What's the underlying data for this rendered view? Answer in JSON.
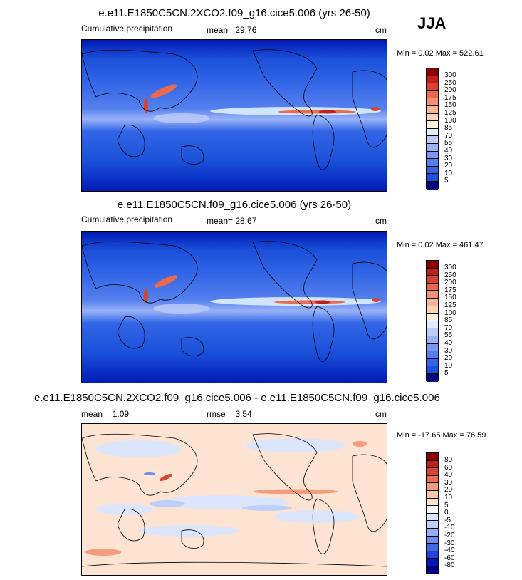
{
  "season": "JJA",
  "colors": {
    "precip_scale": [
      "#00007f",
      "#0019b3",
      "#0033cc",
      "#1a4fd9",
      "#3366e6",
      "#5580ee",
      "#7799f4",
      "#99b3f7",
      "#bbccfa",
      "#ddeefe",
      "#fff0dd",
      "#fdd4b8",
      "#fbb595",
      "#f59070",
      "#ea6a4c",
      "#d9432c",
      "#c0201a",
      "#8b0000"
    ],
    "diff_scale": [
      "#00007f",
      "#0019b3",
      "#1f44d6",
      "#4169e1",
      "#6b8ef0",
      "#93b0f6",
      "#bdd0fa",
      "#dbe6fd",
      "#ffffff",
      "#fde3d2",
      "#fbc5a8",
      "#f59d7a",
      "#ea7050",
      "#d8462e",
      "#bf2016",
      "#8b0000"
    ]
  },
  "panels": [
    {
      "title": "e.e11.E1850C5CN.2XCO2.f09_g16.cice5.006 (yrs 26-50)",
      "left_label": "Cumulative precipitation",
      "mean_label": "mean=  29.76",
      "units": "cm",
      "minmax": "Min =   0.02 Max = 522.61"
    },
    {
      "title": "e.e11.E1850C5CN.f09_g16.cice5.006 (yrs 26-50)",
      "left_label": "Cumulative precipitation",
      "mean_label": "mean=  28.67",
      "units": "cm",
      "minmax": "Min =   0.02 Max = 461.47"
    },
    {
      "title": "e.e11.E1850C5CN.2XCO2.f09_g16.cice5.006 - e.e11.E1850C5CN.f09_g16.cice5.006",
      "left_label": "mean =   1.09",
      "mean_label": "rmse =   3.54",
      "units": "cm",
      "minmax": "Min = -17.65 Max =  76.59"
    }
  ],
  "chart_data": [
    {
      "type": "heatmap",
      "title": "e.e11.E1850C5CN.2XCO2.f09_g16.cice5.006 (yrs 26-50)",
      "variable": "Cumulative precipitation",
      "units": "cm",
      "mean": 29.76,
      "min": 0.02,
      "max": 522.61,
      "colorbar_levels": [
        5,
        10,
        20,
        30,
        40,
        55,
        70,
        85,
        100,
        125,
        150,
        175,
        200,
        250,
        300
      ]
    },
    {
      "type": "heatmap",
      "title": "e.e11.E1850C5CN.f09_g16.cice5.006 (yrs 26-50)",
      "variable": "Cumulative precipitation",
      "units": "cm",
      "mean": 28.67,
      "min": 0.02,
      "max": 461.47,
      "colorbar_levels": [
        5,
        10,
        20,
        30,
        40,
        55,
        70,
        85,
        100,
        125,
        150,
        175,
        200,
        250,
        300
      ]
    },
    {
      "type": "heatmap",
      "title": "e.e11.E1850C5CN.2XCO2.f09_g16.cice5.006 - e.e11.E1850C5CN.f09_g16.cice5.006",
      "units": "cm",
      "mean": 1.09,
      "rmse": 3.54,
      "min": -17.65,
      "max": 76.59,
      "colorbar_levels": [
        -80,
        -60,
        -40,
        -30,
        -20,
        -10,
        -5,
        0,
        5,
        10,
        20,
        30,
        40,
        60,
        80
      ]
    }
  ]
}
